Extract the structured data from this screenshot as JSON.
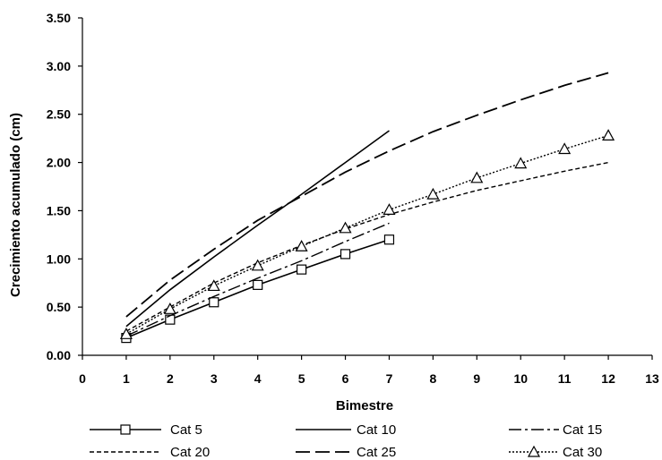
{
  "chart_data": {
    "type": "line",
    "title": "",
    "xlabel": "Bimestre",
    "ylabel": "Crecimiento acumulado (cm)",
    "xlim": [
      0,
      13
    ],
    "ylim": [
      0,
      3.5
    ],
    "x_ticks": [
      "0",
      "1",
      "2",
      "3",
      "4",
      "5",
      "6",
      "7",
      "8",
      "9",
      "10",
      "11",
      "12",
      "13"
    ],
    "y_ticks": [
      "0.00",
      "0.50",
      "1.00",
      "1.50",
      "2.00",
      "2.50",
      "3.00",
      "3.50"
    ],
    "grid": false,
    "legend_position": "bottom",
    "series": [
      {
        "name": "Cat 5",
        "style": "solid",
        "marker": "square",
        "color": "#000000",
        "x": [
          1,
          2,
          3,
          4,
          5,
          6,
          7
        ],
        "values": [
          0.18,
          0.37,
          0.55,
          0.73,
          0.89,
          1.05,
          1.2
        ]
      },
      {
        "name": "Cat 10",
        "style": "solid",
        "marker": "none",
        "color": "#000000",
        "x": [
          1,
          2,
          3,
          4,
          5,
          6,
          7
        ],
        "values": [
          0.3,
          0.68,
          1.02,
          1.35,
          1.67,
          2.0,
          2.33
        ]
      },
      {
        "name": "Cat 15",
        "style": "dashdot",
        "marker": "none",
        "color": "#000000",
        "x": [
          1,
          2,
          3,
          4,
          5,
          6,
          7
        ],
        "values": [
          0.2,
          0.41,
          0.61,
          0.8,
          0.98,
          1.18,
          1.37
        ]
      },
      {
        "name": "Cat 20",
        "style": "shortdash",
        "marker": "none",
        "color": "#000000",
        "x": [
          1,
          2,
          3,
          4,
          5,
          6,
          7,
          8,
          9,
          10,
          11,
          12
        ],
        "values": [
          0.25,
          0.5,
          0.75,
          0.96,
          1.14,
          1.31,
          1.46,
          1.59,
          1.71,
          1.81,
          1.91,
          2.0
        ]
      },
      {
        "name": "Cat 25",
        "style": "longdash",
        "marker": "none",
        "color": "#000000",
        "x": [
          1,
          2,
          3,
          4,
          5,
          6,
          7,
          8,
          9,
          10,
          11,
          12
        ],
        "values": [
          0.4,
          0.78,
          1.1,
          1.4,
          1.65,
          1.9,
          2.12,
          2.32,
          2.49,
          2.65,
          2.8,
          2.93
        ]
      },
      {
        "name": "Cat 30",
        "style": "dotted",
        "marker": "triangle",
        "color": "#000000",
        "x": [
          1,
          2,
          3,
          4,
          5,
          6,
          7,
          8,
          9,
          10,
          11,
          12
        ],
        "values": [
          0.22,
          0.48,
          0.72,
          0.93,
          1.13,
          1.32,
          1.51,
          1.67,
          1.84,
          1.99,
          2.14,
          2.28
        ]
      }
    ]
  }
}
